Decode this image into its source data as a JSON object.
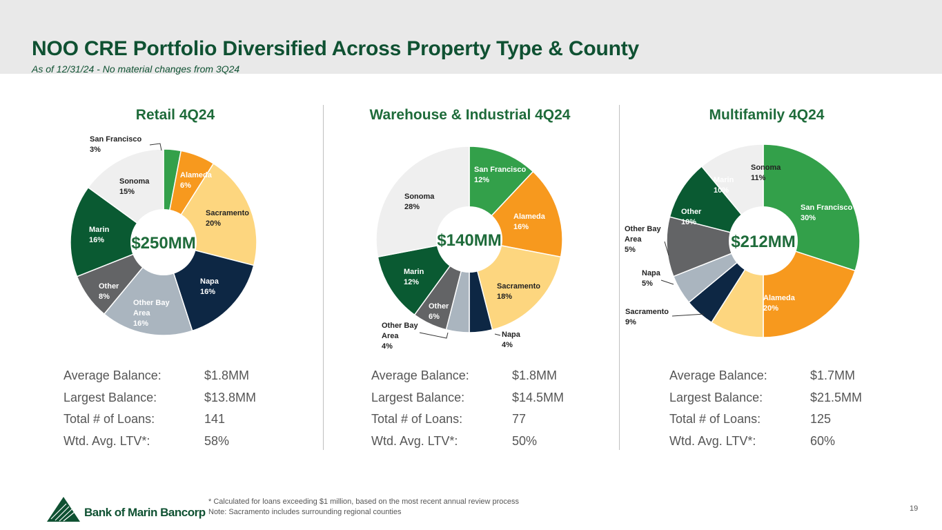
{
  "header": {
    "title": "NOO CRE Portfolio Diversified Across Property Type & County",
    "subtitle": "As of 12/31/24 - No material changes from 3Q24"
  },
  "colors": {
    "San Francisco": "#33a04a",
    "Alameda": "#f7991e",
    "Sacramento": "#fdd67f",
    "Napa": "#0d2744",
    "Other Bay Area": "#aab5bf",
    "Other": "#636466",
    "Marin": "#0a5a32",
    "Sonoma": "#efefef"
  },
  "chart_data": [
    {
      "type": "pie",
      "title": "Retail 4Q24",
      "total_label": "$250MM",
      "slices": [
        {
          "name": "San Francisco",
          "label": "San Francisco",
          "pct": "3%",
          "value": 3
        },
        {
          "name": "Alameda",
          "label": "Alameda",
          "pct": "6%",
          "value": 6
        },
        {
          "name": "Sacramento",
          "label": "Sacramento",
          "pct": "20%",
          "value": 20
        },
        {
          "name": "Napa",
          "label": "Napa",
          "pct": "16%",
          "value": 16
        },
        {
          "name": "Other Bay Area",
          "label": "Other Bay Area",
          "pct": "16%",
          "value": 16
        },
        {
          "name": "Other",
          "label": "Other",
          "pct": "8%",
          "value": 8
        },
        {
          "name": "Marin",
          "label": "Marin",
          "pct": "16%",
          "value": 16
        },
        {
          "name": "Sonoma",
          "label": "Sonoma",
          "pct": "15%",
          "value": 15
        }
      ],
      "stats": [
        {
          "label": "Average Balance:",
          "value": "$1.8MM"
        },
        {
          "label": "Largest Balance:",
          "value": "$13.8MM"
        },
        {
          "label": "Total # of Loans:",
          "value": "141"
        },
        {
          "label": "Wtd. Avg. LTV*:",
          "value": "58%"
        }
      ]
    },
    {
      "type": "pie",
      "title": "Warehouse & Industrial 4Q24",
      "total_label": "$140MM",
      "slices": [
        {
          "name": "San Francisco",
          "label": "San Francisco",
          "pct": "12%",
          "value": 12
        },
        {
          "name": "Alameda",
          "label": "Alameda",
          "pct": "16%",
          "value": 16
        },
        {
          "name": "Sacramento",
          "label": "Sacramento",
          "pct": "18%",
          "value": 18
        },
        {
          "name": "Napa",
          "label": "Napa",
          "pct": "4%",
          "value": 4
        },
        {
          "name": "Other Bay Area",
          "label": "Other Bay Area",
          "pct": "4%",
          "value": 4
        },
        {
          "name": "Other",
          "label": "Other",
          "pct": "6%",
          "value": 6
        },
        {
          "name": "Marin",
          "label": "Marin",
          "pct": "12%",
          "value": 12
        },
        {
          "name": "Sonoma",
          "label": "Sonoma",
          "pct": "28%",
          "value": 28
        }
      ],
      "stats": [
        {
          "label": "Average Balance:",
          "value": "$1.8MM"
        },
        {
          "label": "Largest Balance:",
          "value": "$14.5MM"
        },
        {
          "label": "Total # of Loans:",
          "value": "77"
        },
        {
          "label": "Wtd. Avg. LTV*:",
          "value": "50%"
        }
      ]
    },
    {
      "type": "pie",
      "title": "Multifamily 4Q24",
      "total_label": "$212MM",
      "slices": [
        {
          "name": "San Francisco",
          "label": "San Francisco",
          "pct": "30%",
          "value": 30
        },
        {
          "name": "Alameda",
          "label": "Alameda",
          "pct": "20%",
          "value": 20
        },
        {
          "name": "Sacramento",
          "label": "Sacramento",
          "pct": "9%",
          "value": 9
        },
        {
          "name": "Napa",
          "label": "Napa",
          "pct": "5%",
          "value": 5
        },
        {
          "name": "Other Bay Area",
          "label": "Other Bay Area",
          "pct": "5%",
          "value": 5
        },
        {
          "name": "Other",
          "label": "Other",
          "pct": "10%",
          "value": 10
        },
        {
          "name": "Marin",
          "label": "Marin",
          "pct": "10%",
          "value": 10
        },
        {
          "name": "Sonoma",
          "label": "Sonoma",
          "pct": "11%",
          "value": 11
        }
      ],
      "stats": [
        {
          "label": "Average Balance:",
          "value": "$1.7MM"
        },
        {
          "label": "Largest Balance:",
          "value": "$21.5MM"
        },
        {
          "label": "Total # of Loans:",
          "value": "125"
        },
        {
          "label": "Wtd. Avg. LTV*:",
          "value": "60%"
        }
      ]
    }
  ],
  "footer": {
    "logo_text": "Bank of Marin Bancorp",
    "note1": "* Calculated for loans exceeding $1 million, based on the most recent annual review process",
    "note2": "Note: Sacramento includes surrounding regional counties",
    "page_number": "19"
  }
}
